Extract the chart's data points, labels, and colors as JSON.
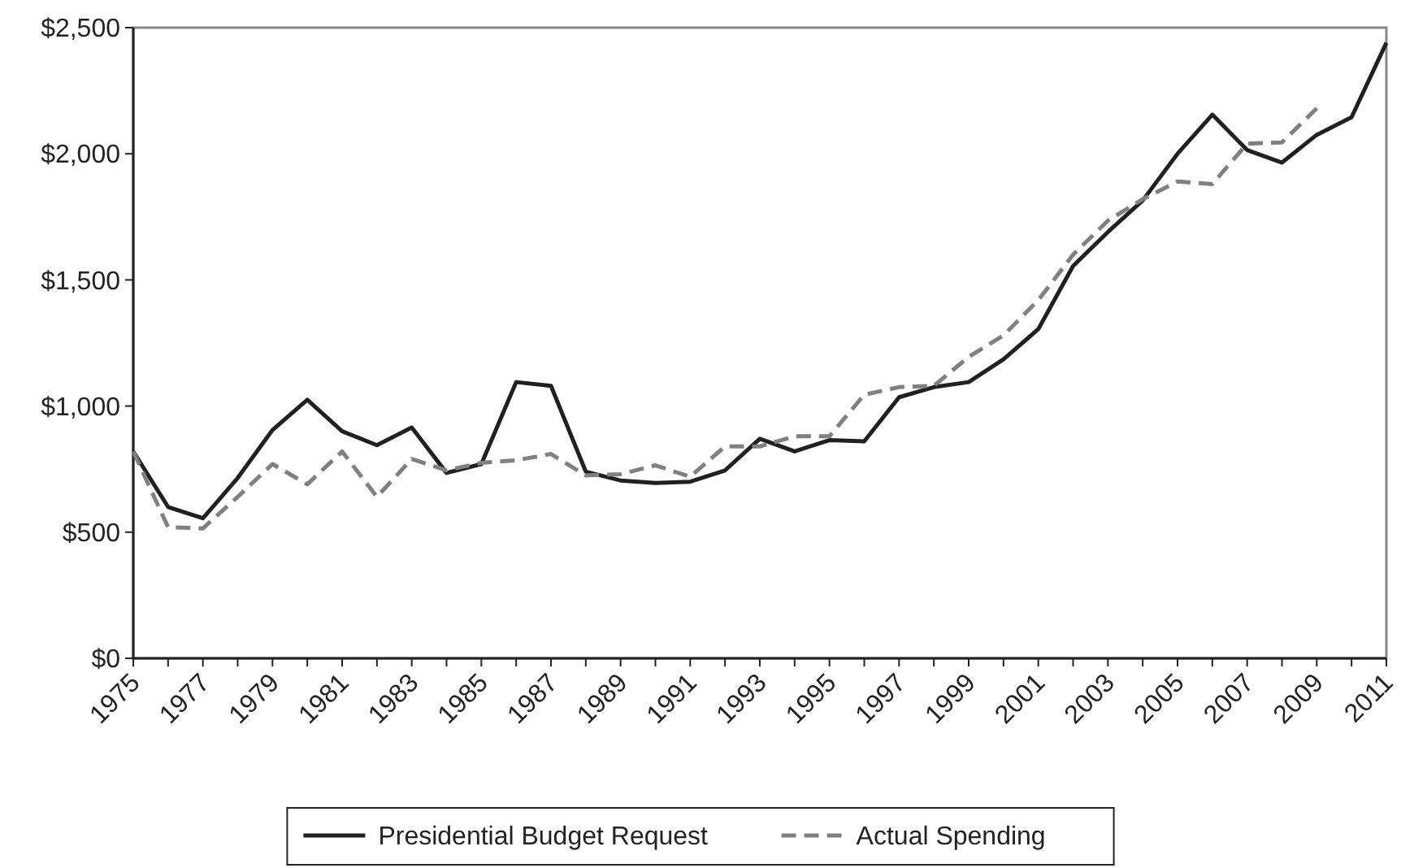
{
  "chart_data": {
    "type": "line",
    "categories": [
      "1975",
      null,
      "1977",
      null,
      "1979",
      null,
      "1981",
      null,
      "1983",
      null,
      "1985",
      null,
      "1987",
      null,
      "1989",
      null,
      "1991",
      null,
      "1993",
      null,
      "1995",
      null,
      "1997",
      null,
      "1999",
      null,
      "2001",
      null,
      "2003",
      null,
      "2005",
      null,
      "2007",
      null,
      "2009",
      null,
      "2011"
    ],
    "series": [
      {
        "name": "Presidential Budget Request",
        "color": "#231f20",
        "line_style": "solid",
        "values": [
          820,
          600,
          555,
          715,
          905,
          1025,
          900,
          845,
          915,
          735,
          770,
          1095,
          1080,
          740,
          705,
          695,
          700,
          745,
          870,
          820,
          865,
          860,
          1035,
          1075,
          1095,
          1185,
          1305,
          1555,
          1690,
          1815,
          2000,
          2155,
          2015,
          1965,
          2075,
          2145,
          2440
        ]
      },
      {
        "name": "Actual Spending",
        "color": "#808080",
        "line_style": "dashed",
        "values": [
          820,
          520,
          515,
          640,
          770,
          690,
          820,
          640,
          790,
          745,
          775,
          785,
          810,
          725,
          730,
          765,
          720,
          840,
          840,
          880,
          880,
          1045,
          1075,
          1080,
          1195,
          1280,
          1420,
          1600,
          1735,
          1820,
          1890,
          1880,
          2040,
          2045,
          2180,
          null,
          null
        ]
      }
    ],
    "ylim": [
      0,
      2500
    ],
    "yticks": [
      {
        "value": 0,
        "label": "$0"
      },
      {
        "value": 500,
        "label": "$500"
      },
      {
        "value": 1000,
        "label": "$1,000"
      },
      {
        "value": 1500,
        "label": "$1,500"
      },
      {
        "value": 2000,
        "label": "$2,000"
      },
      {
        "value": 2500,
        "label": "$2,500"
      }
    ],
    "grid": false,
    "legend": "bottom",
    "marker": "none"
  }
}
